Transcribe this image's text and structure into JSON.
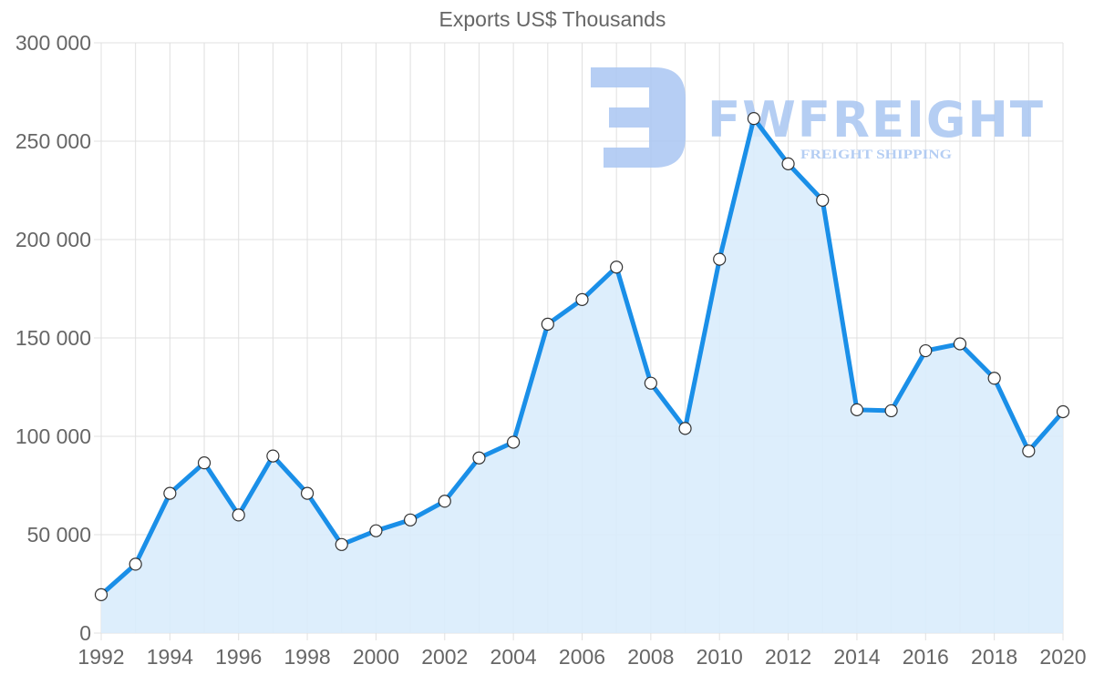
{
  "chart_data": {
    "type": "area",
    "title": "Exports US$ Thousands",
    "xlabel": "",
    "ylabel": "",
    "x": [
      1992,
      1993,
      1994,
      1995,
      1996,
      1997,
      1998,
      1999,
      2000,
      2001,
      2002,
      2003,
      2004,
      2005,
      2006,
      2007,
      2008,
      2009,
      2010,
      2011,
      2012,
      2013,
      2014,
      2015,
      2016,
      2017,
      2018,
      2019,
      2020
    ],
    "series": [
      {
        "name": "Exports US$ Thousands",
        "values": [
          19500,
          35000,
          71000,
          86500,
          60000,
          90000,
          71000,
          45000,
          52000,
          57500,
          67000,
          89000,
          97000,
          157000,
          169500,
          186000,
          127000,
          104000,
          190000,
          261500,
          238500,
          220000,
          113500,
          113000,
          143500,
          147000,
          129500,
          92500,
          112500
        ]
      }
    ],
    "ylim": [
      0,
      300000
    ],
    "yticks": [
      0,
      50000,
      100000,
      150000,
      200000,
      250000,
      300000
    ],
    "ytick_labels": [
      "0",
      "50 000",
      "100 000",
      "150 000",
      "200 000",
      "250 000",
      "300 000"
    ],
    "xtick_labels": [
      "1992",
      "1994",
      "1996",
      "1998",
      "2000",
      "2002",
      "2004",
      "2006",
      "2008",
      "2010",
      "2012",
      "2014",
      "2016",
      "2018",
      "2020"
    ],
    "grid": true,
    "legend": "none",
    "colors": {
      "line": "#1a8fe8",
      "fill": "#d9ecfc",
      "grid": "#e0e0e0",
      "point_fill": "#ffffff",
      "point_stroke": "#333333"
    }
  },
  "watermark": {
    "brand": "FWFREIGHT",
    "tagline": "FREIGHT SHIPPING",
    "color": "#a9c6f2"
  }
}
